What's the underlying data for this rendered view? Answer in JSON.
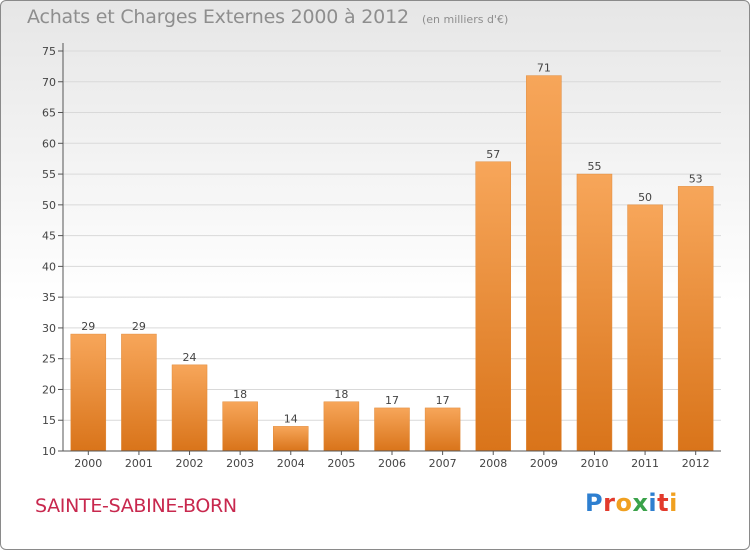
{
  "header": {
    "title": "Achats et Charges Externes 2000 à 2012",
    "subtitle": "(en milliers d'€)"
  },
  "footer": {
    "commune": "SAINTE-SABINE-BORN",
    "brand": "Proxiti",
    "brand_colors": [
      "#2e7fd0",
      "#e23a2c",
      "#f0a020",
      "#3aa24a",
      "#2e7fd0",
      "#e23a2c",
      "#f0a020"
    ]
  },
  "colors": {
    "bar_top": "#f7a65a",
    "bar_bottom": "#d9741a",
    "axis": "#555555",
    "grid": "#d9d9d9",
    "text": "#444444"
  },
  "chart_data": {
    "type": "bar",
    "categories": [
      "2000",
      "2001",
      "2002",
      "2003",
      "2004",
      "2005",
      "2006",
      "2007",
      "2008",
      "2009",
      "2010",
      "2011",
      "2012"
    ],
    "values": [
      29,
      29,
      24,
      18,
      14,
      18,
      17,
      17,
      57,
      71,
      55,
      50,
      53
    ],
    "data_labels": [
      "29",
      "29",
      "24",
      "18",
      "14",
      "18",
      "17",
      "17",
      "57",
      "71",
      "55",
      "50",
      "53"
    ],
    "title": "Achats et Charges Externes 2000 à 2012",
    "subtitle": "(en milliers d'€)",
    "ylim": [
      10,
      75
    ],
    "yticks": [
      10,
      15,
      20,
      25,
      30,
      35,
      40,
      45,
      50,
      55,
      60,
      65,
      70,
      75
    ],
    "grid": true,
    "legend": "none"
  }
}
